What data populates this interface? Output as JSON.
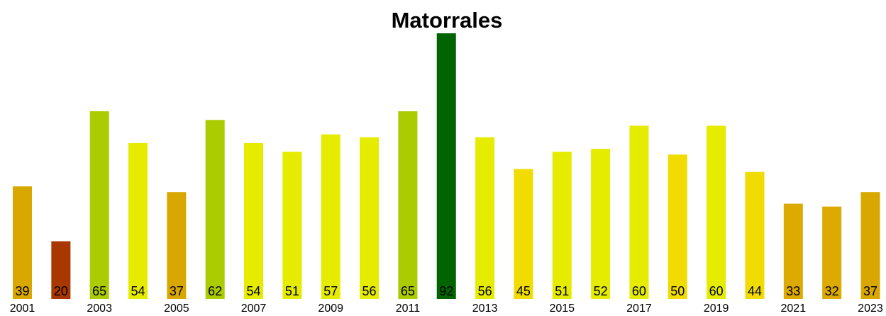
{
  "chart_data": {
    "type": "bar",
    "title": "Matorrales",
    "categories": [
      "2001",
      null,
      "2003",
      null,
      "2005",
      null,
      "2007",
      null,
      "2009",
      null,
      "2011",
      null,
      "2013",
      null,
      "2015",
      null,
      "2017",
      null,
      "2019",
      null,
      "2021",
      null,
      "2023"
    ],
    "values": [
      39,
      20,
      65,
      54,
      37,
      62,
      54,
      51,
      57,
      56,
      65,
      92,
      56,
      45,
      51,
      52,
      60,
      50,
      60,
      44,
      33,
      32,
      37
    ],
    "colors": [
      "#d9a800",
      "#a83800",
      "#aacc00",
      "#e5ec00",
      "#d9a800",
      "#aacc00",
      "#e5ec00",
      "#e5ec00",
      "#e5ec00",
      "#e5ec00",
      "#aacc00",
      "#006400",
      "#e5ec00",
      "#f0dc00",
      "#e5ec00",
      "#e5ec00",
      "#e5ec00",
      "#f0dc00",
      "#e5ec00",
      "#f0dc00",
      "#dcaa00",
      "#dcaa00",
      "#d9a800"
    ]
  }
}
